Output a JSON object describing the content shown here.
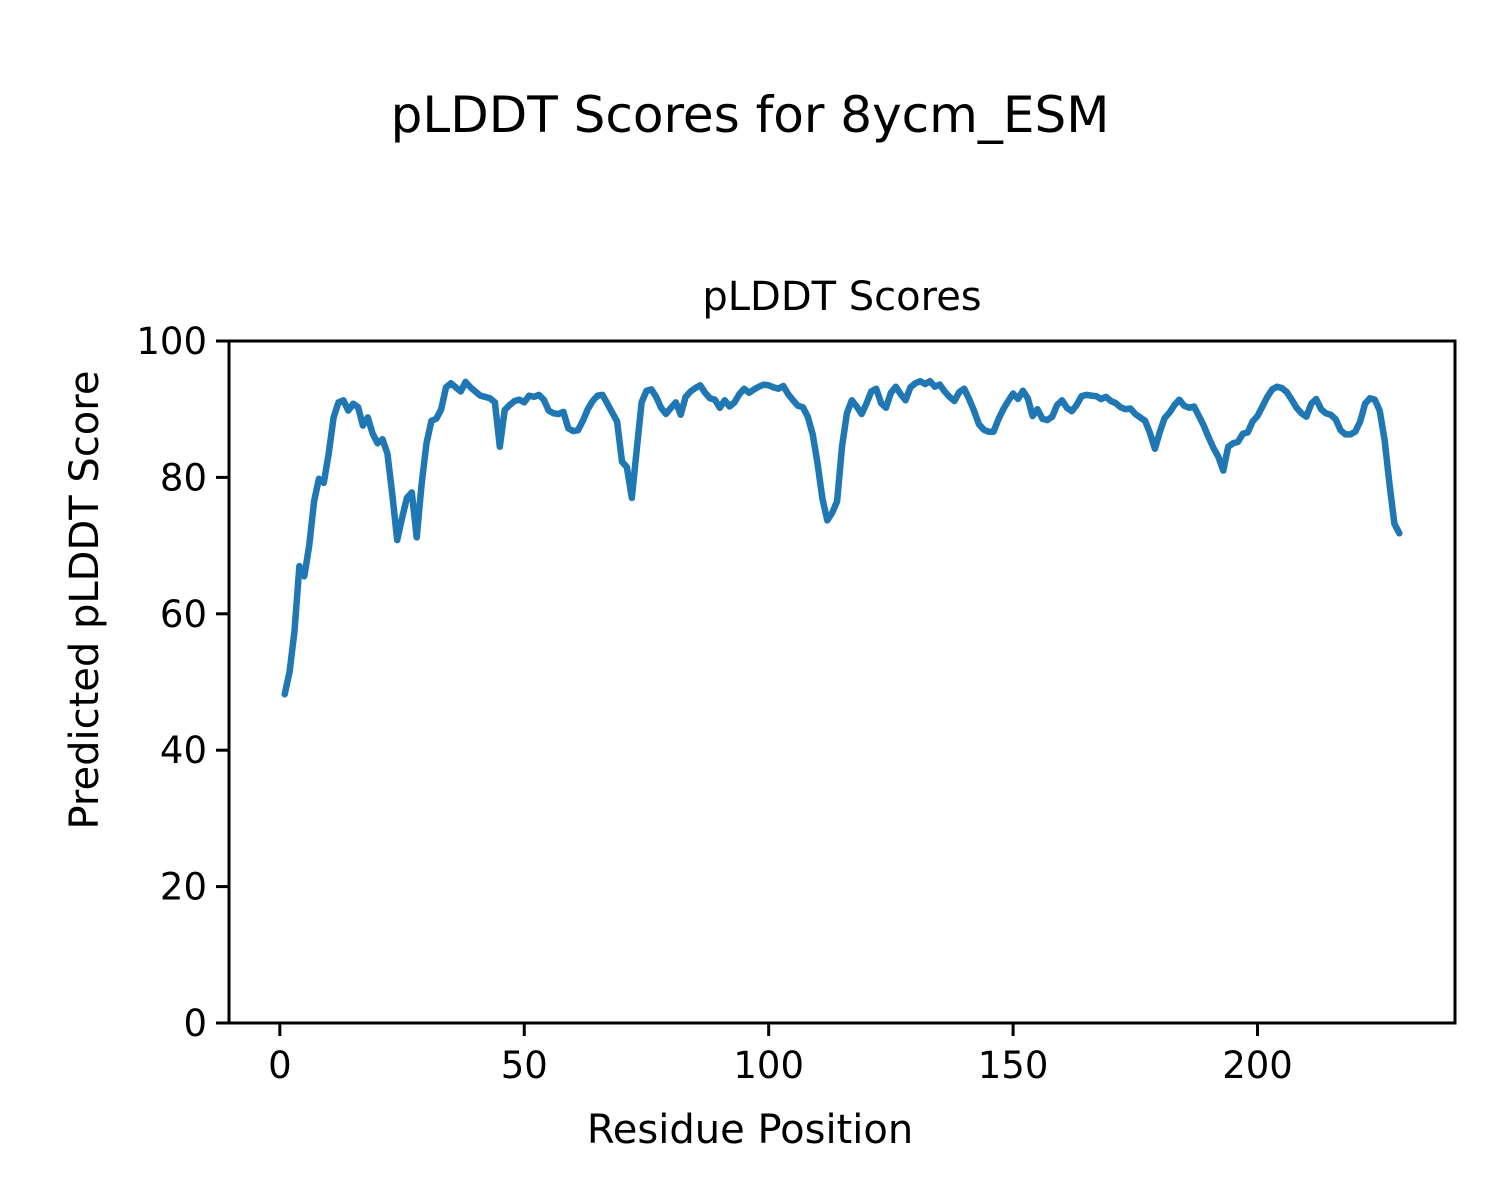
{
  "figure": {
    "suptitle": "pLDDT Scores for 8ycm_ESM"
  },
  "chart_data": {
    "type": "line",
    "title": "pLDDT Scores",
    "xlabel": "Residue Position",
    "ylabel": "Predicted pLDDT Score",
    "x_start": 1,
    "x_step": 1,
    "xlim": [
      -10.4,
      240.4
    ],
    "ylim": [
      0,
      100
    ],
    "xticks": [
      0,
      50,
      100,
      150,
      200
    ],
    "yticks": [
      0,
      20,
      40,
      60,
      80,
      100
    ],
    "grid": false,
    "legend": "none",
    "line_color": "#1f77b4",
    "line_width": 6.5,
    "series_name": "pLDDT",
    "values": [
      48.2,
      51.5,
      57.5,
      67.0,
      65.5,
      70.0,
      76.5,
      79.8,
      79.2,
      83.5,
      88.8,
      91.0,
      91.3,
      89.8,
      90.8,
      90.3,
      87.6,
      88.8,
      86.4,
      85.0,
      85.6,
      83.5,
      77.5,
      70.8,
      74.0,
      77.0,
      77.8,
      71.2,
      79.0,
      85.0,
      88.3,
      88.6,
      90.0,
      93.2,
      93.8,
      93.2,
      92.6,
      94.0,
      93.2,
      92.6,
      92.0,
      91.8,
      91.6,
      91.0,
      84.5,
      89.9,
      90.6,
      91.2,
      91.4,
      91.0,
      92.0,
      91.8,
      92.1,
      91.4,
      89.8,
      89.4,
      89.3,
      89.6,
      87.2,
      86.8,
      86.9,
      88.3,
      90.0,
      91.2,
      92.0,
      92.1,
      90.8,
      89.5,
      88.2,
      82.3,
      81.5,
      77.0,
      84.0,
      91.0,
      92.7,
      92.9,
      91.8,
      90.2,
      89.3,
      90.2,
      91.0,
      89.2,
      91.8,
      92.6,
      93.1,
      93.5,
      92.4,
      91.6,
      91.4,
      90.2,
      91.3,
      90.4,
      91.0,
      92.2,
      93.0,
      92.4,
      92.9,
      93.3,
      93.6,
      93.5,
      93.2,
      93.0,
      93.4,
      92.2,
      91.3,
      90.5,
      90.3,
      88.9,
      86.3,
      82.0,
      76.9,
      73.7,
      74.8,
      76.5,
      84.5,
      89.4,
      91.3,
      90.4,
      89.3,
      90.8,
      92.6,
      93.0,
      90.9,
      90.2,
      92.4,
      93.3,
      92.2,
      91.3,
      93.2,
      93.8,
      94.1,
      93.7,
      94.1,
      93.3,
      93.6,
      92.6,
      91.8,
      91.2,
      92.5,
      93.0,
      91.5,
      89.8,
      87.8,
      87.0,
      86.7,
      86.7,
      88.5,
      90.0,
      91.2,
      92.3,
      91.5,
      92.7,
      91.6,
      89.0,
      90.0,
      88.6,
      88.4,
      88.9,
      90.6,
      91.3,
      90.2,
      89.7,
      90.6,
      91.9,
      92.1,
      92.0,
      91.9,
      91.5,
      91.8,
      91.2,
      90.9,
      90.3,
      90.0,
      90.1,
      89.3,
      88.8,
      88.3,
      86.5,
      84.2,
      86.6,
      88.7,
      89.5,
      90.6,
      91.4,
      90.5,
      90.2,
      90.4,
      89.0,
      87.6,
      85.9,
      84.3,
      83.0,
      81.0,
      84.5,
      85.0,
      85.2,
      86.4,
      86.6,
      88.2,
      89.0,
      90.4,
      91.8,
      92.9,
      93.3,
      93.1,
      92.5,
      91.4,
      90.2,
      89.4,
      88.9,
      90.8,
      91.5,
      90.0,
      89.4,
      89.2,
      88.5,
      86.9,
      86.3,
      86.3,
      86.7,
      88.2,
      90.8,
      91.6,
      91.4,
      89.8,
      85.5,
      79.0,
      73.2,
      71.8
    ]
  }
}
